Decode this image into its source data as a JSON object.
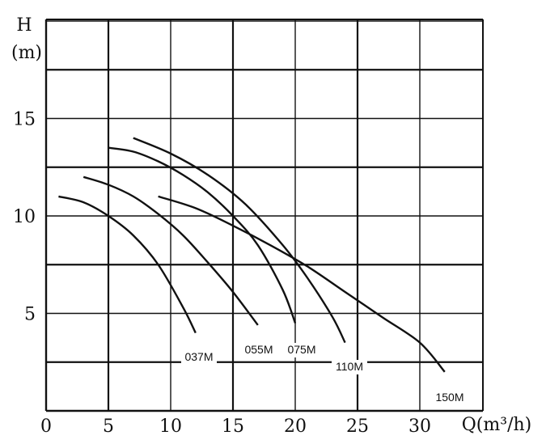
{
  "chart_data": {
    "type": "line",
    "title": "",
    "xlabel": "Q(m³/h)",
    "ylabel_line1": "H",
    "ylabel_line2": "(m)",
    "xlim": [
      0,
      35
    ],
    "ylim": [
      0,
      20
    ],
    "x_ticks": [
      0,
      5,
      10,
      15,
      20,
      25,
      30
    ],
    "y_tick_labels": [
      5,
      10,
      15
    ],
    "grid": true,
    "series": [
      {
        "name": "037M",
        "x": [
          1,
          3,
          5,
          7,
          9,
          11,
          12
        ],
        "y": [
          11,
          10.7,
          10.0,
          9.0,
          7.5,
          5.3,
          4.0
        ]
      },
      {
        "name": "055M",
        "x": [
          3,
          5,
          7,
          9,
          11,
          13,
          15,
          17
        ],
        "y": [
          12,
          11.6,
          11.0,
          10.1,
          9.0,
          7.6,
          6.1,
          4.4
        ]
      },
      {
        "name": "075M",
        "x": [
          5,
          7,
          9,
          11,
          13,
          15,
          17,
          19,
          20
        ],
        "y": [
          13.5,
          13.3,
          12.8,
          12.1,
          11.2,
          10.0,
          8.5,
          6.2,
          4.5
        ]
      },
      {
        "name": "110M",
        "x": [
          7,
          10,
          13,
          16,
          19,
          21,
          23,
          24
        ],
        "y": [
          14,
          13.2,
          12.1,
          10.6,
          8.5,
          6.8,
          4.8,
          3.5
        ]
      },
      {
        "name": "150M",
        "x": [
          9,
          12,
          15,
          18,
          21,
          24,
          27,
          30,
          32
        ],
        "y": [
          11,
          10.4,
          9.5,
          8.5,
          7.4,
          6.1,
          4.8,
          3.5,
          2.0
        ]
      }
    ]
  }
}
